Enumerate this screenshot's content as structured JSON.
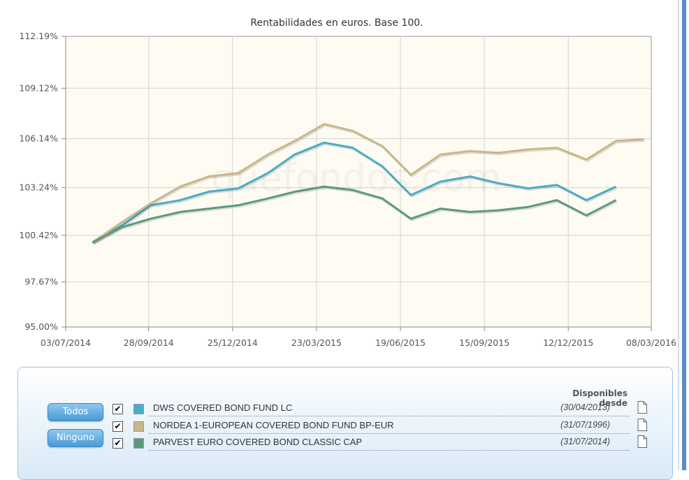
{
  "chart_data": {
    "type": "line",
    "title": "Rentabilidades en euros. Base 100.",
    "watermark": "quefondos.com",
    "xlabel": "",
    "ylabel": "",
    "x_tick_labels": [
      "03/07/2014",
      "28/09/2014",
      "25/12/2014",
      "23/03/2015",
      "19/06/2015",
      "15/09/2015",
      "12/12/2015",
      "08/03/2016"
    ],
    "y_tick_labels": [
      "95.00%",
      "97.67%",
      "100.42%",
      "103.24%",
      "106.14%",
      "109.12%",
      "112.19%"
    ],
    "y_ticks": [
      95.0,
      97.67,
      100.42,
      103.24,
      106.14,
      109.12,
      112.19
    ],
    "ylim": [
      95.0,
      112.19
    ],
    "x": [
      "2014-07-31",
      "2014-08-31",
      "2014-09-30",
      "2014-10-31",
      "2014-11-30",
      "2014-12-31",
      "2015-01-31",
      "2015-02-28",
      "2015-03-31",
      "2015-04-30",
      "2015-05-31",
      "2015-06-30",
      "2015-07-31",
      "2015-08-31",
      "2015-09-30",
      "2015-10-31",
      "2015-11-30",
      "2015-12-31",
      "2016-01-31",
      "2016-02-29"
    ],
    "grid": true,
    "series": [
      {
        "name": "DWS COVERED BOND FUND LC",
        "color": "#4aacc5",
        "values": [
          100.0,
          101.0,
          102.2,
          102.5,
          103.0,
          103.2,
          104.1,
          105.2,
          105.9,
          105.6,
          104.5,
          102.8,
          103.6,
          103.9,
          103.5,
          103.2,
          103.4,
          102.5,
          103.3,
          null
        ]
      },
      {
        "name": "NORDEA 1-EUROPEAN COVERED BOND FUND BP-EUR",
        "color": "#c8b68a",
        "values": [
          100.0,
          101.2,
          102.3,
          103.3,
          103.9,
          104.1,
          105.2,
          106.0,
          107.0,
          106.6,
          105.7,
          104.0,
          105.2,
          105.4,
          105.3,
          105.5,
          105.6,
          104.9,
          106.0,
          106.1
        ]
      },
      {
        "name": "PARVEST EURO COVERED BOND CLASSIC CAP",
        "color": "#5a9a7c",
        "values": [
          100.0,
          100.9,
          101.4,
          101.8,
          102.0,
          102.2,
          102.6,
          103.0,
          103.3,
          103.1,
          102.6,
          101.4,
          102.0,
          101.8,
          101.9,
          102.1,
          102.5,
          101.6,
          102.5,
          null
        ]
      }
    ]
  },
  "legend": {
    "header": "Disponibles desde",
    "all_button": "Todos",
    "none_button": "Ninguno",
    "check_glyph": "✔",
    "document_icon": "document-icon",
    "funds": [
      {
        "name": "DWS COVERED BOND FUND LC",
        "date": "(30/04/2013)",
        "color": "#4aacc5",
        "checked": true
      },
      {
        "name": "NORDEA 1-EUROPEAN COVERED BOND FUND BP-EUR",
        "date": "(31/07/1996)",
        "color": "#c8b68a",
        "checked": true
      },
      {
        "name": "PARVEST EURO COVERED BOND CLASSIC CAP",
        "date": "(31/07/2014)",
        "color": "#5a9a7c",
        "checked": true
      }
    ]
  }
}
